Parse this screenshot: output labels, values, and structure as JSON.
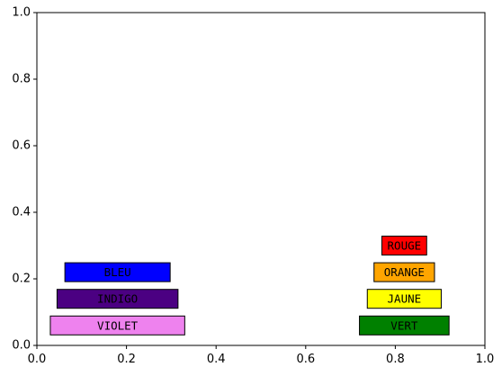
{
  "chart_data": {
    "type": "bar",
    "orientation": "horizontal",
    "xlim": [
      0,
      1
    ],
    "ylim": [
      0,
      1
    ],
    "xticks": [
      0.0,
      0.2,
      0.4,
      0.6,
      0.8,
      1.0
    ],
    "yticks": [
      0.0,
      0.2,
      0.4,
      0.6,
      0.8,
      1.0
    ],
    "xtick_labels": [
      "0.0",
      "0.2",
      "0.4",
      "0.6",
      "0.8",
      "1.0"
    ],
    "ytick_labels": [
      "0.0",
      "0.2",
      "0.4",
      "0.6",
      "0.8",
      "1.0"
    ],
    "grid": false,
    "title": "",
    "xlabel": "",
    "ylabel": "",
    "bars": [
      {
        "label": "VIOLET",
        "center_x": 0.18,
        "y": 0.06,
        "width": 0.3,
        "color": "#ee82ee"
      },
      {
        "label": "INDIGO",
        "center_x": 0.18,
        "y": 0.14,
        "width": 0.27,
        "color": "#4b0082"
      },
      {
        "label": "BLEU",
        "center_x": 0.18,
        "y": 0.22,
        "width": 0.235,
        "color": "#0000ff"
      },
      {
        "label": "VERT",
        "center_x": 0.82,
        "y": 0.06,
        "width": 0.2,
        "color": "#008000"
      },
      {
        "label": "JAUNE",
        "center_x": 0.82,
        "y": 0.14,
        "width": 0.165,
        "color": "#ffff00"
      },
      {
        "label": "ORANGE",
        "center_x": 0.82,
        "y": 0.22,
        "width": 0.135,
        "color": "#ffa500"
      },
      {
        "label": "ROUGE",
        "center_x": 0.82,
        "y": 0.3,
        "width": 0.1,
        "color": "#ff0000"
      }
    ]
  }
}
